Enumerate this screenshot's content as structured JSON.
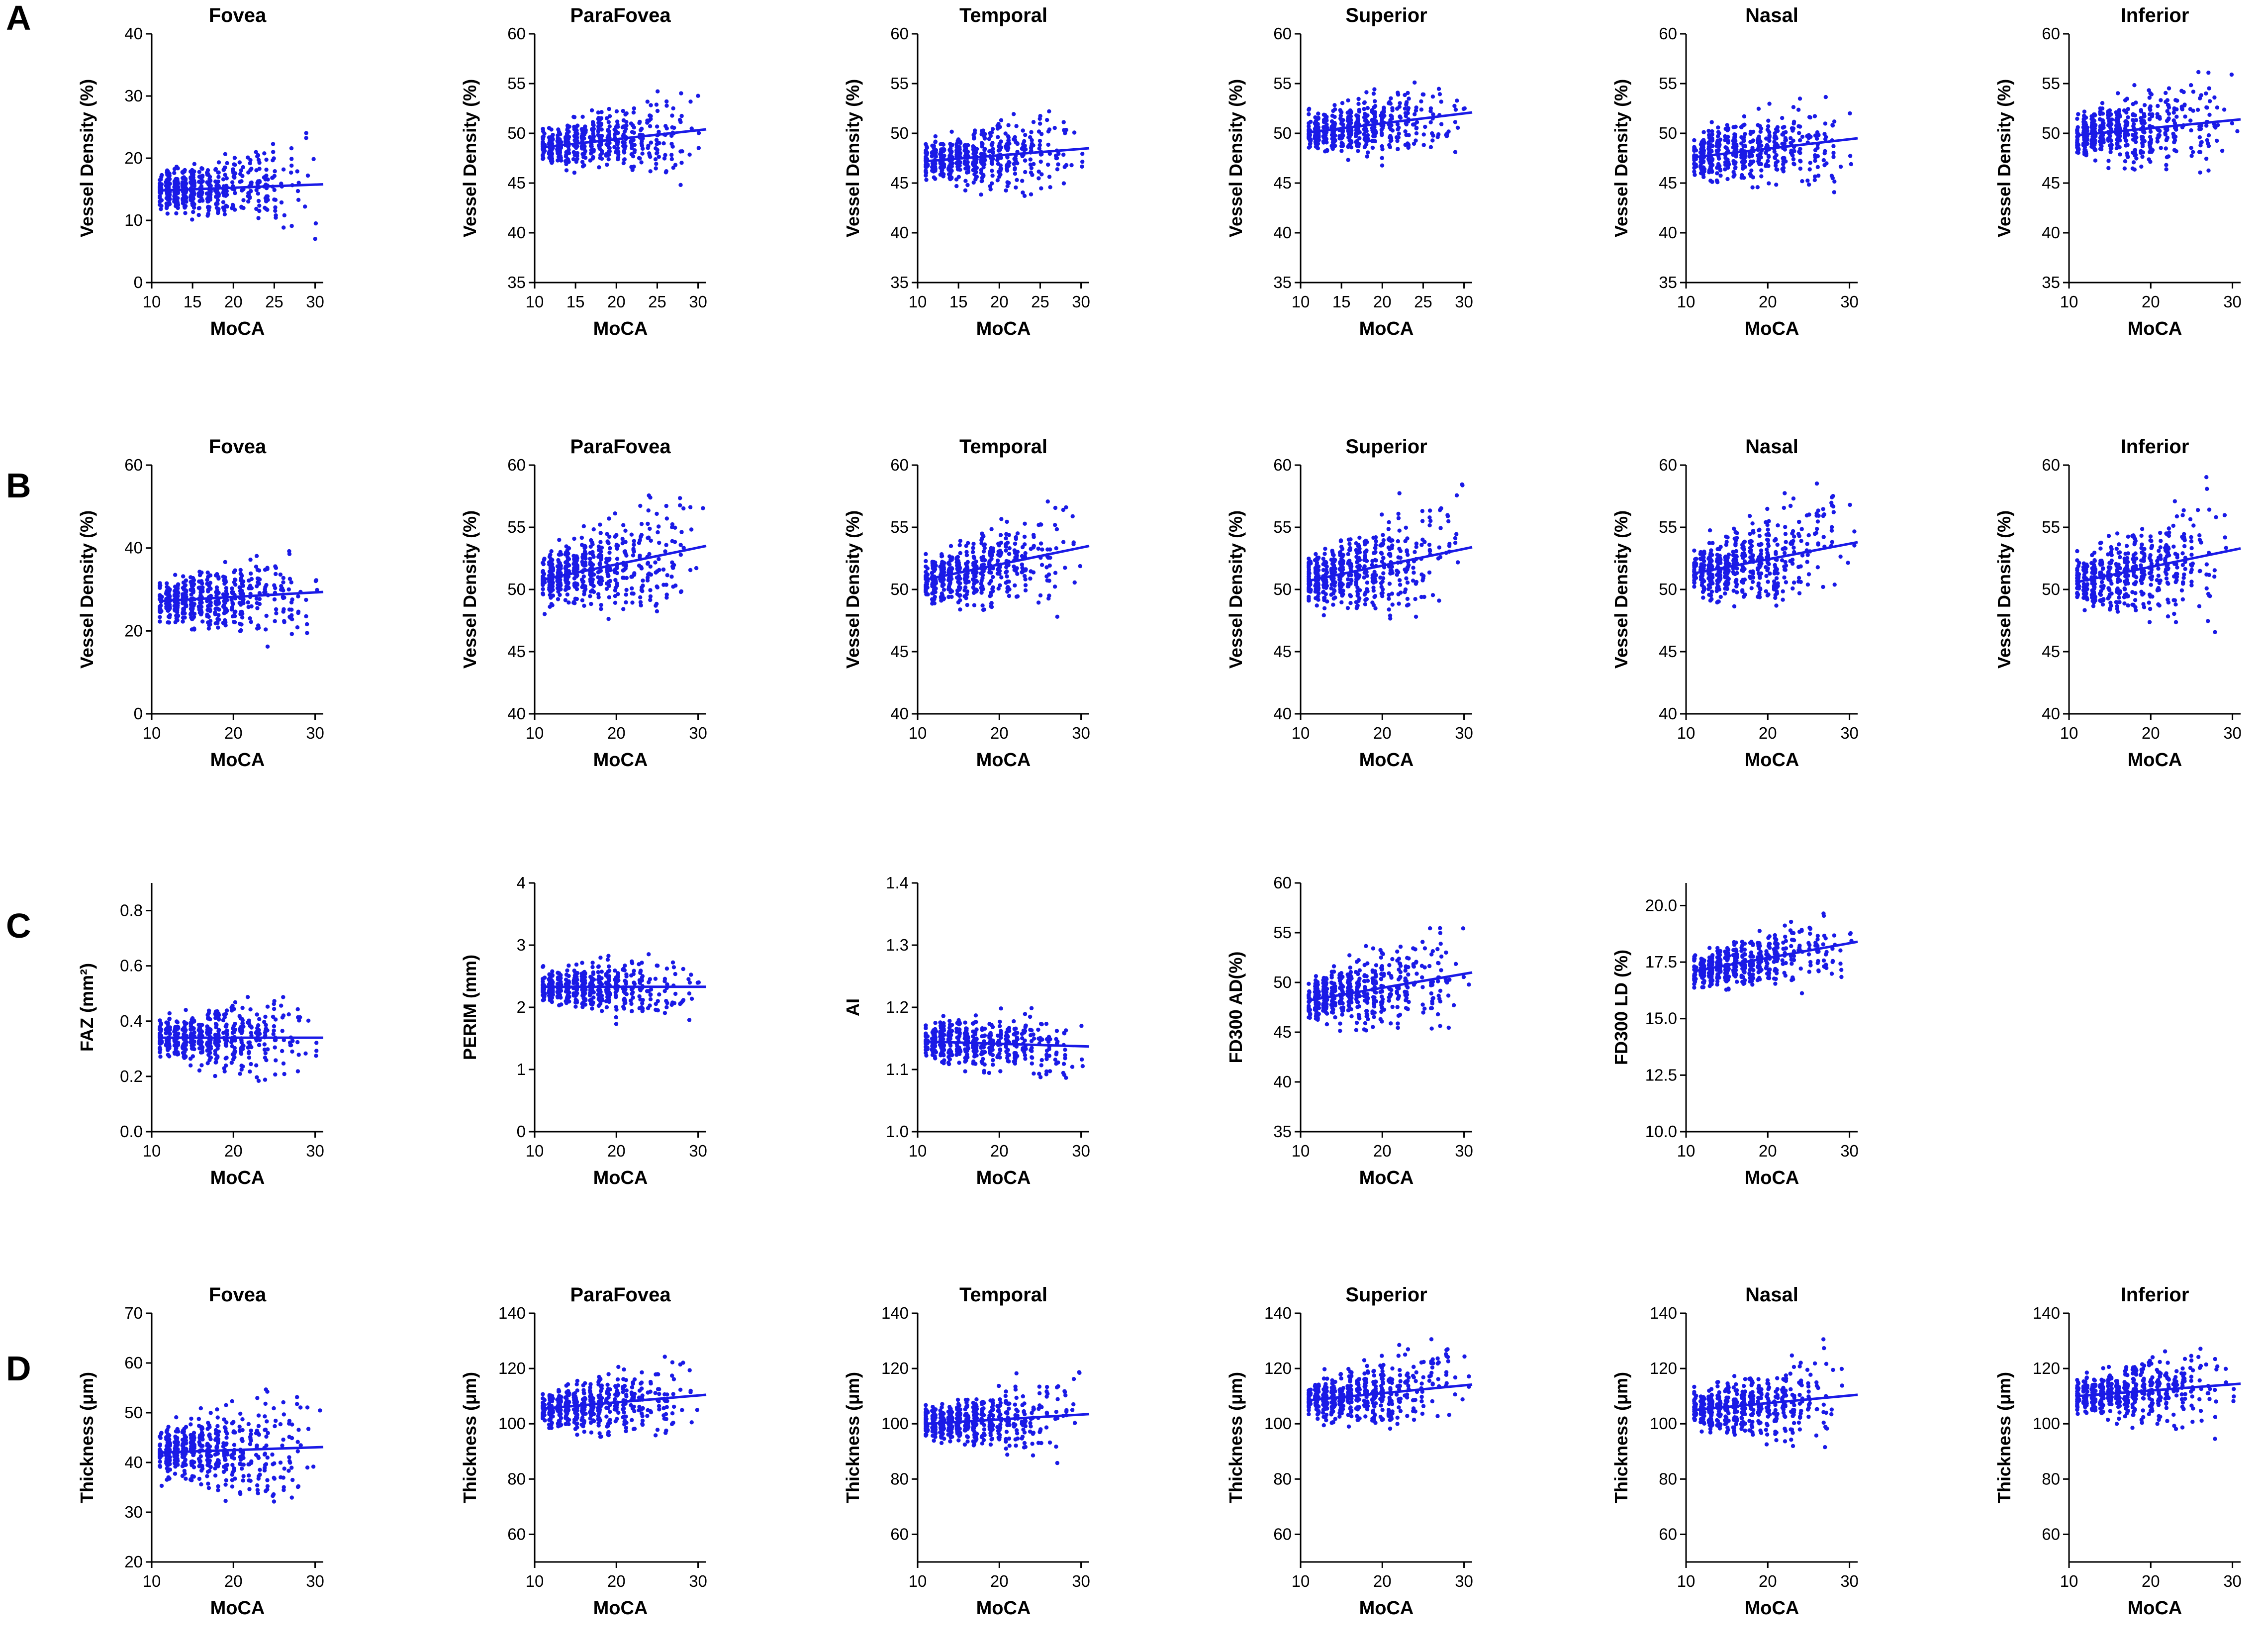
{
  "chart_data": [
    {
      "row": "A",
      "type": "scatter",
      "point_color": "#1a1ae6",
      "panels": [
        {
          "title": "Fovea",
          "xlabel": "MoCA",
          "ylabel": "Vessel Density (%)",
          "xlim": [
            10,
            31
          ],
          "xticks": [
            "10",
            "15",
            "20",
            "25",
            "30"
          ],
          "ylim": [
            0,
            40
          ],
          "yticks": [
            "0",
            "10",
            "20",
            "30",
            "40"
          ],
          "fit": {
            "x": [
              11,
              31
            ],
            "y": [
              14.8,
              15.8
            ]
          },
          "spread": {
            "lo": 3,
            "hi": 30
          }
        },
        {
          "title": "ParaFovea",
          "xlabel": "MoCA",
          "ylabel": "Vessel Density (%)",
          "xlim": [
            10,
            31
          ],
          "xticks": [
            "10",
            "15",
            "20",
            "25",
            "30"
          ],
          "ylim": [
            35,
            60
          ],
          "yticks": [
            "35",
            "40",
            "45",
            "50",
            "55",
            "60"
          ],
          "fit": {
            "x": [
              11,
              31
            ],
            "y": [
              48.6,
              50.4
            ]
          },
          "spread": {
            "lo": 40,
            "hi": 56
          }
        },
        {
          "title": "Temporal",
          "xlabel": "MoCA",
          "ylabel": "Vessel Density (%)",
          "xlim": [
            10,
            31
          ],
          "xticks": [
            "10",
            "15",
            "20",
            "25",
            "30"
          ],
          "ylim": [
            35,
            60
          ],
          "yticks": [
            "35",
            "40",
            "45",
            "50",
            "55",
            "60"
          ],
          "fit": {
            "x": [
              11,
              31
            ],
            "y": [
              47.2,
              48.5
            ]
          },
          "spread": {
            "lo": 38,
            "hi": 55
          }
        },
        {
          "title": "Superior",
          "xlabel": "MoCA",
          "ylabel": "Vessel Density (%)",
          "xlim": [
            10,
            31
          ],
          "xticks": [
            "10",
            "15",
            "20",
            "25",
            "30"
          ],
          "ylim": [
            35,
            60
          ],
          "yticks": [
            "35",
            "40",
            "45",
            "50",
            "55",
            "60"
          ],
          "fit": {
            "x": [
              11,
              31
            ],
            "y": [
              50.1,
              52.1
            ]
          },
          "spread": {
            "lo": 42,
            "hi": 59
          }
        },
        {
          "title": "Nasal",
          "xlabel": "MoCA",
          "ylabel": "Vessel Density (%)",
          "xlim": [
            10,
            31
          ],
          "xticks": [
            "10",
            "20",
            "30"
          ],
          "ylim": [
            35,
            60
          ],
          "yticks": [
            "35",
            "40",
            "45",
            "50",
            "55",
            "60"
          ],
          "fit": {
            "x": [
              11,
              31
            ],
            "y": [
              47.6,
              49.5
            ]
          },
          "spread": {
            "lo": 38,
            "hi": 57
          }
        },
        {
          "title": "Inferior",
          "xlabel": "MoCA",
          "ylabel": "Vessel Density (%)",
          "xlim": [
            10,
            31
          ],
          "xticks": [
            "10",
            "20",
            "30"
          ],
          "ylim": [
            35,
            60
          ],
          "yticks": [
            "35",
            "40",
            "45",
            "50",
            "55",
            "60"
          ],
          "fit": {
            "x": [
              11,
              31
            ],
            "y": [
              49.8,
              51.4
            ]
          },
          "spread": {
            "lo": 40,
            "hi": 59
          }
        }
      ]
    },
    {
      "row": "B",
      "type": "scatter",
      "point_color": "#1a1ae6",
      "panels": [
        {
          "title": "Fovea",
          "xlabel": "MoCA",
          "ylabel": "Vessel Density (%)",
          "xlim": [
            10,
            31
          ],
          "xticks": [
            "10",
            "20",
            "30"
          ],
          "ylim": [
            0,
            60
          ],
          "yticks": [
            "0",
            "20",
            "40",
            "60"
          ],
          "fit": {
            "x": [
              11,
              31
            ],
            "y": [
              27.2,
              29.4
            ]
          },
          "spread": {
            "lo": 6,
            "hi": 48
          }
        },
        {
          "title": "ParaFovea",
          "xlabel": "MoCA",
          "ylabel": "Vessel Density (%)",
          "xlim": [
            10,
            31
          ],
          "xticks": [
            "10",
            "20",
            "30"
          ],
          "ylim": [
            40,
            60
          ],
          "yticks": [
            "40",
            "45",
            "50",
            "55",
            "60"
          ],
          "fit": {
            "x": [
              11,
              31
            ],
            "y": [
              50.8,
              53.5
            ]
          },
          "spread": {
            "lo": 42,
            "hi": 60
          }
        },
        {
          "title": "Temporal",
          "xlabel": "MoCA",
          "ylabel": "Vessel Density (%)",
          "xlim": [
            10,
            31
          ],
          "xticks": [
            "10",
            "20",
            "30"
          ],
          "ylim": [
            40,
            60
          ],
          "yticks": [
            "40",
            "45",
            "50",
            "55",
            "60"
          ],
          "fit": {
            "x": [
              11,
              31
            ],
            "y": [
              50.8,
              53.5
            ]
          },
          "spread": {
            "lo": 43,
            "hi": 60
          }
        },
        {
          "title": "Superior",
          "xlabel": "MoCA",
          "ylabel": "Vessel Density (%)",
          "xlim": [
            10,
            31
          ],
          "xticks": [
            "10",
            "20",
            "30"
          ],
          "ylim": [
            40,
            60
          ],
          "yticks": [
            "40",
            "45",
            "50",
            "55",
            "60"
          ],
          "fit": {
            "x": [
              11,
              31
            ],
            "y": [
              50.7,
              53.4
            ]
          },
          "spread": {
            "lo": 41,
            "hi": 60
          }
        },
        {
          "title": "Nasal",
          "xlabel": "MoCA",
          "ylabel": "Vessel Density (%)",
          "xlim": [
            10,
            31
          ],
          "xticks": [
            "10",
            "20",
            "30"
          ],
          "ylim": [
            40,
            60
          ],
          "yticks": [
            "40",
            "45",
            "50",
            "55",
            "60"
          ],
          "fit": {
            "x": [
              11,
              31
            ],
            "y": [
              51.3,
              53.8
            ]
          },
          "spread": {
            "lo": 42,
            "hi": 60
          }
        },
        {
          "title": "Inferior",
          "xlabel": "MoCA",
          "ylabel": "Vessel Density (%)",
          "xlim": [
            10,
            31
          ],
          "xticks": [
            "10",
            "20",
            "30"
          ],
          "ylim": [
            40,
            60
          ],
          "yticks": [
            "40",
            "45",
            "50",
            "55",
            "60"
          ],
          "fit": {
            "x": [
              11,
              31
            ],
            "y": [
              50.6,
              53.3
            ]
          },
          "spread": {
            "lo": 41,
            "hi": 60
          }
        }
      ]
    },
    {
      "row": "C",
      "type": "scatter",
      "point_color": "#1a1ae6",
      "panels": [
        {
          "title": "",
          "xlabel": "MoCA",
          "ylabel": "FAZ (mm²)",
          "xlim": [
            10,
            31
          ],
          "xticks": [
            "10",
            "20",
            "30"
          ],
          "ylim": [
            0.0,
            0.9
          ],
          "yticks": [
            "0.0",
            "0.2",
            "0.4",
            "0.6",
            "0.8"
          ],
          "fit": {
            "x": [
              11,
              31
            ],
            "y": [
              0.34,
              0.34
            ]
          },
          "spread": {
            "lo": 0.06,
            "hi": 0.68
          }
        },
        {
          "title": "",
          "xlabel": "MoCA",
          "ylabel": "PERIM (mm)",
          "xlim": [
            10,
            31
          ],
          "xticks": [
            "10",
            "20",
            "30"
          ],
          "ylim": [
            0,
            4
          ],
          "yticks": [
            "0",
            "1",
            "2",
            "3",
            "4"
          ],
          "fit": {
            "x": [
              11,
              31
            ],
            "y": [
              2.33,
              2.33
            ]
          },
          "spread": {
            "lo": 1.0,
            "hi": 3.4
          }
        },
        {
          "title": "",
          "xlabel": "MoCA",
          "ylabel": "AI",
          "xlim": [
            10,
            31
          ],
          "xticks": [
            "10",
            "20",
            "30"
          ],
          "ylim": [
            1.0,
            1.4
          ],
          "yticks": [
            "1.0",
            "1.1",
            "1.2",
            "1.3",
            "1.4"
          ],
          "fit": {
            "x": [
              11,
              31
            ],
            "y": [
              1.145,
              1.137
            ]
          },
          "spread": {
            "lo": 1.06,
            "hi": 1.3
          }
        },
        {
          "title": "",
          "xlabel": "MoCA",
          "ylabel": "FD300 AD(%)",
          "xlim": [
            10,
            31
          ],
          "xticks": [
            "10",
            "20",
            "30"
          ],
          "ylim": [
            35,
            60
          ],
          "yticks": [
            "35",
            "40",
            "45",
            "50",
            "55",
            "60"
          ],
          "fit": {
            "x": [
              11,
              31
            ],
            "y": [
              48.2,
              51.0
            ]
          },
          "spread": {
            "lo": 39,
            "hi": 58
          }
        },
        {
          "title": "",
          "xlabel": "MoCA",
          "ylabel": "FD300 LD (%)",
          "xlim": [
            10,
            31
          ],
          "xticks": [
            "10",
            "20",
            "30"
          ],
          "ylim": [
            10.0,
            21.0
          ],
          "yticks": [
            "10.0",
            "12.5",
            "15.0",
            "17.5",
            "20.0"
          ],
          "fit": {
            "x": [
              11,
              31
            ],
            "y": [
              17.1,
              18.4
            ]
          },
          "spread": {
            "lo": 14.6,
            "hi": 20.8
          }
        }
      ]
    },
    {
      "row": "D",
      "type": "scatter",
      "point_color": "#1a1ae6",
      "panels": [
        {
          "title": "Fovea",
          "xlabel": "MoCA",
          "ylabel": "Thickness (μm)",
          "xlim": [
            10,
            31
          ],
          "xticks": [
            "10",
            "20",
            "30"
          ],
          "ylim": [
            20,
            70
          ],
          "yticks": [
            "20",
            "30",
            "40",
            "50",
            "60",
            "70"
          ],
          "fit": {
            "x": [
              11,
              31
            ],
            "y": [
              42.0,
              43.1
            ]
          },
          "spread": {
            "lo": 25,
            "hi": 68
          }
        },
        {
          "title": "ParaFovea",
          "xlabel": "MoCA",
          "ylabel": "Thickness (μm)",
          "xlim": [
            10,
            31
          ],
          "xticks": [
            "10",
            "20",
            "30"
          ],
          "ylim": [
            50,
            140
          ],
          "yticks": [
            "60",
            "80",
            "100",
            "120",
            "140"
          ],
          "fit": {
            "x": [
              11,
              31
            ],
            "y": [
              105.5,
              110.5
            ]
          },
          "spread": {
            "lo": 75,
            "hi": 135
          }
        },
        {
          "title": "Temporal",
          "xlabel": "MoCA",
          "ylabel": "Thickness (μm)",
          "xlim": [
            10,
            31
          ],
          "xticks": [
            "10",
            "20",
            "30"
          ],
          "ylim": [
            50,
            140
          ],
          "yticks": [
            "60",
            "80",
            "100",
            "120",
            "140"
          ],
          "fit": {
            "x": [
              11,
              31
            ],
            "y": [
              100.0,
              103.5
            ]
          },
          "spread": {
            "lo": 72,
            "hi": 128
          }
        },
        {
          "title": "Superior",
          "xlabel": "MoCA",
          "ylabel": "Thickness (μm)",
          "xlim": [
            10,
            31
          ],
          "xticks": [
            "10",
            "20",
            "30"
          ],
          "ylim": [
            50,
            140
          ],
          "yticks": [
            "60",
            "80",
            "100",
            "120",
            "140"
          ],
          "fit": {
            "x": [
              11,
              31
            ],
            "y": [
              108.5,
              114.2
            ]
          },
          "spread": {
            "lo": 78,
            "hi": 138
          }
        },
        {
          "title": "Nasal",
          "xlabel": "MoCA",
          "ylabel": "Thickness (μm)",
          "xlim": [
            10,
            31
          ],
          "xticks": [
            "10",
            "20",
            "30"
          ],
          "ylim": [
            50,
            140
          ],
          "yticks": [
            "60",
            "80",
            "100",
            "120",
            "140"
          ],
          "fit": {
            "x": [
              11,
              31
            ],
            "y": [
              105.0,
              110.5
            ]
          },
          "spread": {
            "lo": 72,
            "hi": 136
          }
        },
        {
          "title": "Inferior",
          "xlabel": "MoCA",
          "ylabel": "Thickness (μm)",
          "xlim": [
            10,
            31
          ],
          "xticks": [
            "10",
            "20",
            "30"
          ],
          "ylim": [
            50,
            140
          ],
          "yticks": [
            "60",
            "80",
            "100",
            "120",
            "140"
          ],
          "fit": {
            "x": [
              11,
              31
            ],
            "y": [
              110.0,
              114.5
            ]
          },
          "spread": {
            "lo": 80,
            "hi": 138
          }
        }
      ]
    }
  ]
}
